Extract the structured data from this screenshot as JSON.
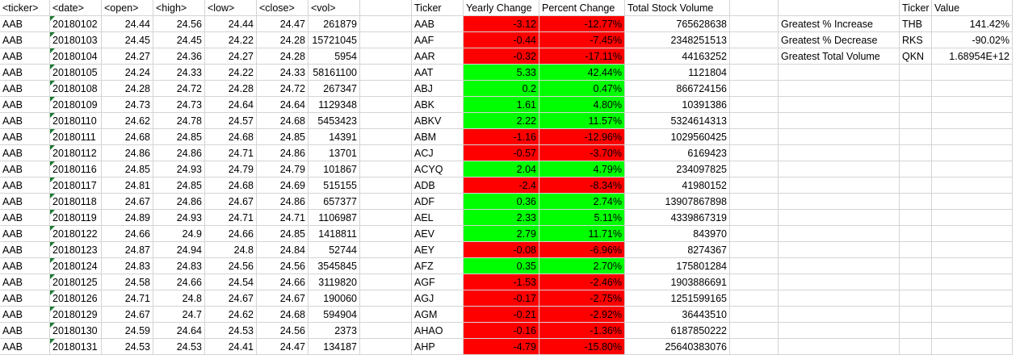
{
  "raw_headers": [
    "<ticker>",
    "<date>",
    "<open>",
    "<high>",
    "<low>",
    "<close>",
    "<vol>"
  ],
  "raw_rows": [
    [
      "AAB",
      "20180102",
      "24.44",
      "24.56",
      "24.44",
      "24.47",
      "261879"
    ],
    [
      "AAB",
      "20180103",
      "24.45",
      "24.45",
      "24.22",
      "24.28",
      "15721045"
    ],
    [
      "AAB",
      "20180104",
      "24.27",
      "24.36",
      "24.27",
      "24.28",
      "5954"
    ],
    [
      "AAB",
      "20180105",
      "24.24",
      "24.33",
      "24.22",
      "24.33",
      "58161100"
    ],
    [
      "AAB",
      "20180108",
      "24.28",
      "24.72",
      "24.28",
      "24.72",
      "267347"
    ],
    [
      "AAB",
      "20180109",
      "24.73",
      "24.73",
      "24.64",
      "24.64",
      "1129348"
    ],
    [
      "AAB",
      "20180110",
      "24.62",
      "24.78",
      "24.57",
      "24.68",
      "5453423"
    ],
    [
      "AAB",
      "20180111",
      "24.68",
      "24.85",
      "24.68",
      "24.85",
      "14391"
    ],
    [
      "AAB",
      "20180112",
      "24.86",
      "24.86",
      "24.71",
      "24.86",
      "13701"
    ],
    [
      "AAB",
      "20180116",
      "24.85",
      "24.93",
      "24.79",
      "24.79",
      "101867"
    ],
    [
      "AAB",
      "20180117",
      "24.81",
      "24.85",
      "24.68",
      "24.69",
      "515155"
    ],
    [
      "AAB",
      "20180118",
      "24.67",
      "24.86",
      "24.67",
      "24.86",
      "657377"
    ],
    [
      "AAB",
      "20180119",
      "24.89",
      "24.93",
      "24.71",
      "24.71",
      "1106987"
    ],
    [
      "AAB",
      "20180122",
      "24.66",
      "24.9",
      "24.66",
      "24.85",
      "1418811"
    ],
    [
      "AAB",
      "20180123",
      "24.87",
      "24.94",
      "24.8",
      "24.84",
      "52744"
    ],
    [
      "AAB",
      "20180124",
      "24.83",
      "24.83",
      "24.56",
      "24.56",
      "3545845"
    ],
    [
      "AAB",
      "20180125",
      "24.58",
      "24.66",
      "24.54",
      "24.66",
      "3119820"
    ],
    [
      "AAB",
      "20180126",
      "24.71",
      "24.8",
      "24.67",
      "24.67",
      "190060"
    ],
    [
      "AAB",
      "20180129",
      "24.67",
      "24.7",
      "24.62",
      "24.68",
      "594904"
    ],
    [
      "AAB",
      "20180130",
      "24.59",
      "24.64",
      "24.53",
      "24.56",
      "2373"
    ],
    [
      "AAB",
      "20180131",
      "24.53",
      "24.53",
      "24.41",
      "24.47",
      "134187"
    ]
  ],
  "summary_headers": [
    "Ticker",
    "Yearly Change",
    "Percent Change",
    "Total Stock Volume"
  ],
  "summary_rows": [
    {
      "ticker": "AAB",
      "change": "-3.12",
      "pct": "-12.77%",
      "volume": "765628638",
      "status": "negative"
    },
    {
      "ticker": "AAF",
      "change": "-0.44",
      "pct": "-7.45%",
      "volume": "2348251513",
      "status": "negative"
    },
    {
      "ticker": "AAR",
      "change": "-0.32",
      "pct": "-17.11%",
      "volume": "44163252",
      "status": "negative"
    },
    {
      "ticker": "AAT",
      "change": "5.33",
      "pct": "42.44%",
      "volume": "1121804",
      "status": "positive"
    },
    {
      "ticker": "ABJ",
      "change": "0.2",
      "pct": "0.47%",
      "volume": "866724156",
      "status": "positive"
    },
    {
      "ticker": "ABK",
      "change": "1.61",
      "pct": "4.80%",
      "volume": "10391386",
      "status": "positive"
    },
    {
      "ticker": "ABKV",
      "change": "2.22",
      "pct": "11.57%",
      "volume": "5324614313",
      "status": "positive"
    },
    {
      "ticker": "ABM",
      "change": "-1.16",
      "pct": "-12.96%",
      "volume": "1029560425",
      "status": "negative"
    },
    {
      "ticker": "ACJ",
      "change": "-0.57",
      "pct": "-3.70%",
      "volume": "6169423",
      "status": "negative"
    },
    {
      "ticker": "ACYQ",
      "change": "2.04",
      "pct": "4.79%",
      "volume": "234097825",
      "status": "positive"
    },
    {
      "ticker": "ADB",
      "change": "-2.4",
      "pct": "-8.34%",
      "volume": "41980152",
      "status": "negative"
    },
    {
      "ticker": "ADF",
      "change": "0.36",
      "pct": "2.74%",
      "volume": "13907867898",
      "status": "positive"
    },
    {
      "ticker": "AEL",
      "change": "2.33",
      "pct": "5.11%",
      "volume": "4339867319",
      "status": "positive"
    },
    {
      "ticker": "AEV",
      "change": "2.79",
      "pct": "11.71%",
      "volume": "843970",
      "status": "positive"
    },
    {
      "ticker": "AEY",
      "change": "-0.08",
      "pct": "-6.96%",
      "volume": "8274367",
      "status": "negative"
    },
    {
      "ticker": "AFZ",
      "change": "0.35",
      "pct": "2.70%",
      "volume": "175801284",
      "status": "positive"
    },
    {
      "ticker": "AGF",
      "change": "-1.53",
      "pct": "-2.46%",
      "volume": "1903886691",
      "status": "negative"
    },
    {
      "ticker": "AGJ",
      "change": "-0.17",
      "pct": "-2.75%",
      "volume": "1251599165",
      "status": "negative"
    },
    {
      "ticker": "AGM",
      "change": "-0.21",
      "pct": "-2.92%",
      "volume": "36443510",
      "status": "negative"
    },
    {
      "ticker": "AHAO",
      "change": "-0.16",
      "pct": "-1.36%",
      "volume": "6187850222",
      "status": "negative"
    },
    {
      "ticker": "AHP",
      "change": "-4.79",
      "pct": "-15.80%",
      "volume": "25640383076",
      "status": "negative"
    }
  ],
  "greatest_headers": [
    "Ticker",
    "Value"
  ],
  "greatest_rows": [
    {
      "label": "Greatest % Increase",
      "ticker": "THB",
      "value": "141.42%"
    },
    {
      "label": "Greatest % Decrease",
      "ticker": "RKS",
      "value": "-90.02%"
    },
    {
      "label": "Greatest Total Volume",
      "ticker": "QKN",
      "value": "1.68954E+12"
    }
  ],
  "colors": {
    "positive": "#00ff00",
    "negative": "#ff0000",
    "gridline": "#d4d4d4",
    "error_indicator": "#1e7b34"
  }
}
